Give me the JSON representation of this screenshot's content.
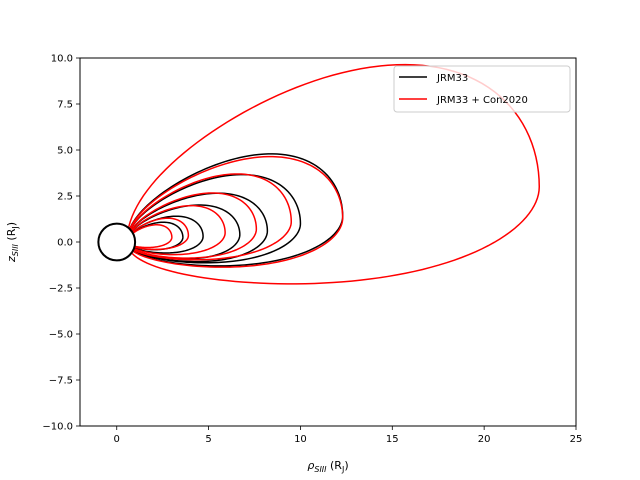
{
  "chart_data": {
    "type": "line",
    "xlabel_main": "ρ",
    "xlabel_sub": "SIII",
    "xlabel_unit": " (R",
    "xlabel_unit_sub": "J",
    "xlabel_unit_end": ")",
    "ylabel_main": "z",
    "ylabel_sub": "SIII",
    "ylabel_unit": " (R",
    "ylabel_unit_sub": "J",
    "ylabel_unit_end": ")",
    "xlim": [
      -2,
      25
    ],
    "ylim": [
      -10,
      10
    ],
    "xticks": [
      0,
      5,
      10,
      15,
      20,
      25
    ],
    "xtick_labels": [
      "0",
      "5",
      "10",
      "15",
      "20",
      "25"
    ],
    "yticks": [
      -10,
      -7.5,
      -5,
      -2.5,
      0,
      2.5,
      5,
      7.5,
      10
    ],
    "ytick_labels": [
      "−10.0",
      "−7.5",
      "−5.0",
      "−2.5",
      "0.0",
      "2.5",
      "5.0",
      "7.5",
      "10.0"
    ],
    "grid": false,
    "legend_position": "top-right",
    "planet": {
      "center": [
        0,
        0
      ],
      "radius": 1,
      "color": "#000000"
    },
    "series": [
      {
        "name": "JRM33",
        "color": "#000000",
        "field_lines": [
          {
            "rmax": 3.6,
            "zc": 0.25
          },
          {
            "rmax": 4.7,
            "zc": 0.3
          },
          {
            "rmax": 6.7,
            "zc": 0.4
          },
          {
            "rmax": 8.2,
            "zc": 0.6
          },
          {
            "rmax": 10.0,
            "zc": 1.0
          },
          {
            "rmax": 12.3,
            "zc": 1.4
          }
        ]
      },
      {
        "name": "JRM33 + Con2020",
        "color": "#ff0000",
        "field_lines": [
          {
            "rmax": 3.0,
            "zc": 0.25
          },
          {
            "rmax": 3.9,
            "zc": 0.35
          },
          {
            "rmax": 5.9,
            "zc": 0.5
          },
          {
            "rmax": 7.6,
            "zc": 0.7
          },
          {
            "rmax": 9.5,
            "zc": 1.1
          },
          {
            "rmax": 12.3,
            "zc": 1.3
          },
          {
            "rmax": 23.0,
            "zc": 3.0
          }
        ]
      }
    ]
  }
}
